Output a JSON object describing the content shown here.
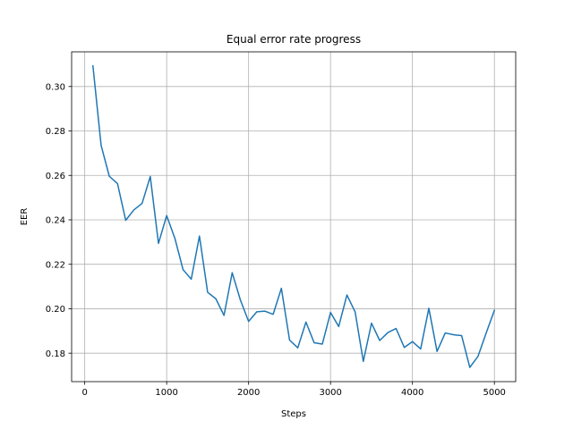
{
  "chart_data": {
    "type": "line",
    "title": "Equal error rate progress",
    "xlabel": "Steps",
    "ylabel": "EER",
    "xlim": [
      -160,
      5260
    ],
    "ylim": [
      0.1672,
      0.3156
    ],
    "grid": true,
    "line_color": "#1f77b4",
    "xticks": [
      0,
      1000,
      2000,
      3000,
      4000,
      5000
    ],
    "xtick_labels": [
      "0",
      "1000",
      "2000",
      "3000",
      "4000",
      "5000"
    ],
    "yticks": [
      0.18,
      0.2,
      0.22,
      0.24,
      0.26,
      0.28,
      0.3
    ],
    "ytick_labels": [
      "0.18",
      "0.20",
      "0.22",
      "0.24",
      "0.26",
      "0.28",
      "0.30"
    ],
    "series": [
      {
        "name": "EER",
        "x": [
          100,
          200,
          300,
          400,
          500,
          600,
          700,
          800,
          900,
          1000,
          1100,
          1200,
          1300,
          1400,
          1500,
          1600,
          1700,
          1800,
          1900,
          2000,
          2100,
          2200,
          2300,
          2400,
          2500,
          2600,
          2700,
          2800,
          2900,
          3000,
          3100,
          3200,
          3300,
          3400,
          3500,
          3600,
          3700,
          3800,
          3900,
          4000,
          4100,
          4200,
          4300,
          4400,
          4500,
          4600,
          4700,
          4800,
          4900,
          5000
        ],
        "y": [
          0.3093,
          0.2735,
          0.2596,
          0.2563,
          0.2398,
          0.2445,
          0.2474,
          0.2595,
          0.2294,
          0.2419,
          0.2317,
          0.2176,
          0.2133,
          0.2327,
          0.2074,
          0.2045,
          0.197,
          0.2162,
          0.2039,
          0.1943,
          0.1986,
          0.1989,
          0.1975,
          0.2092,
          0.1859,
          0.1824,
          0.194,
          0.1847,
          0.1841,
          0.1983,
          0.192,
          0.2062,
          0.1986,
          0.1763,
          0.1935,
          0.1857,
          0.1893,
          0.1911,
          0.1826,
          0.1852,
          0.1819,
          0.2002,
          0.1808,
          0.1891,
          0.1883,
          0.1879,
          0.1736,
          0.1786,
          0.1891,
          0.1993
        ]
      }
    ]
  }
}
